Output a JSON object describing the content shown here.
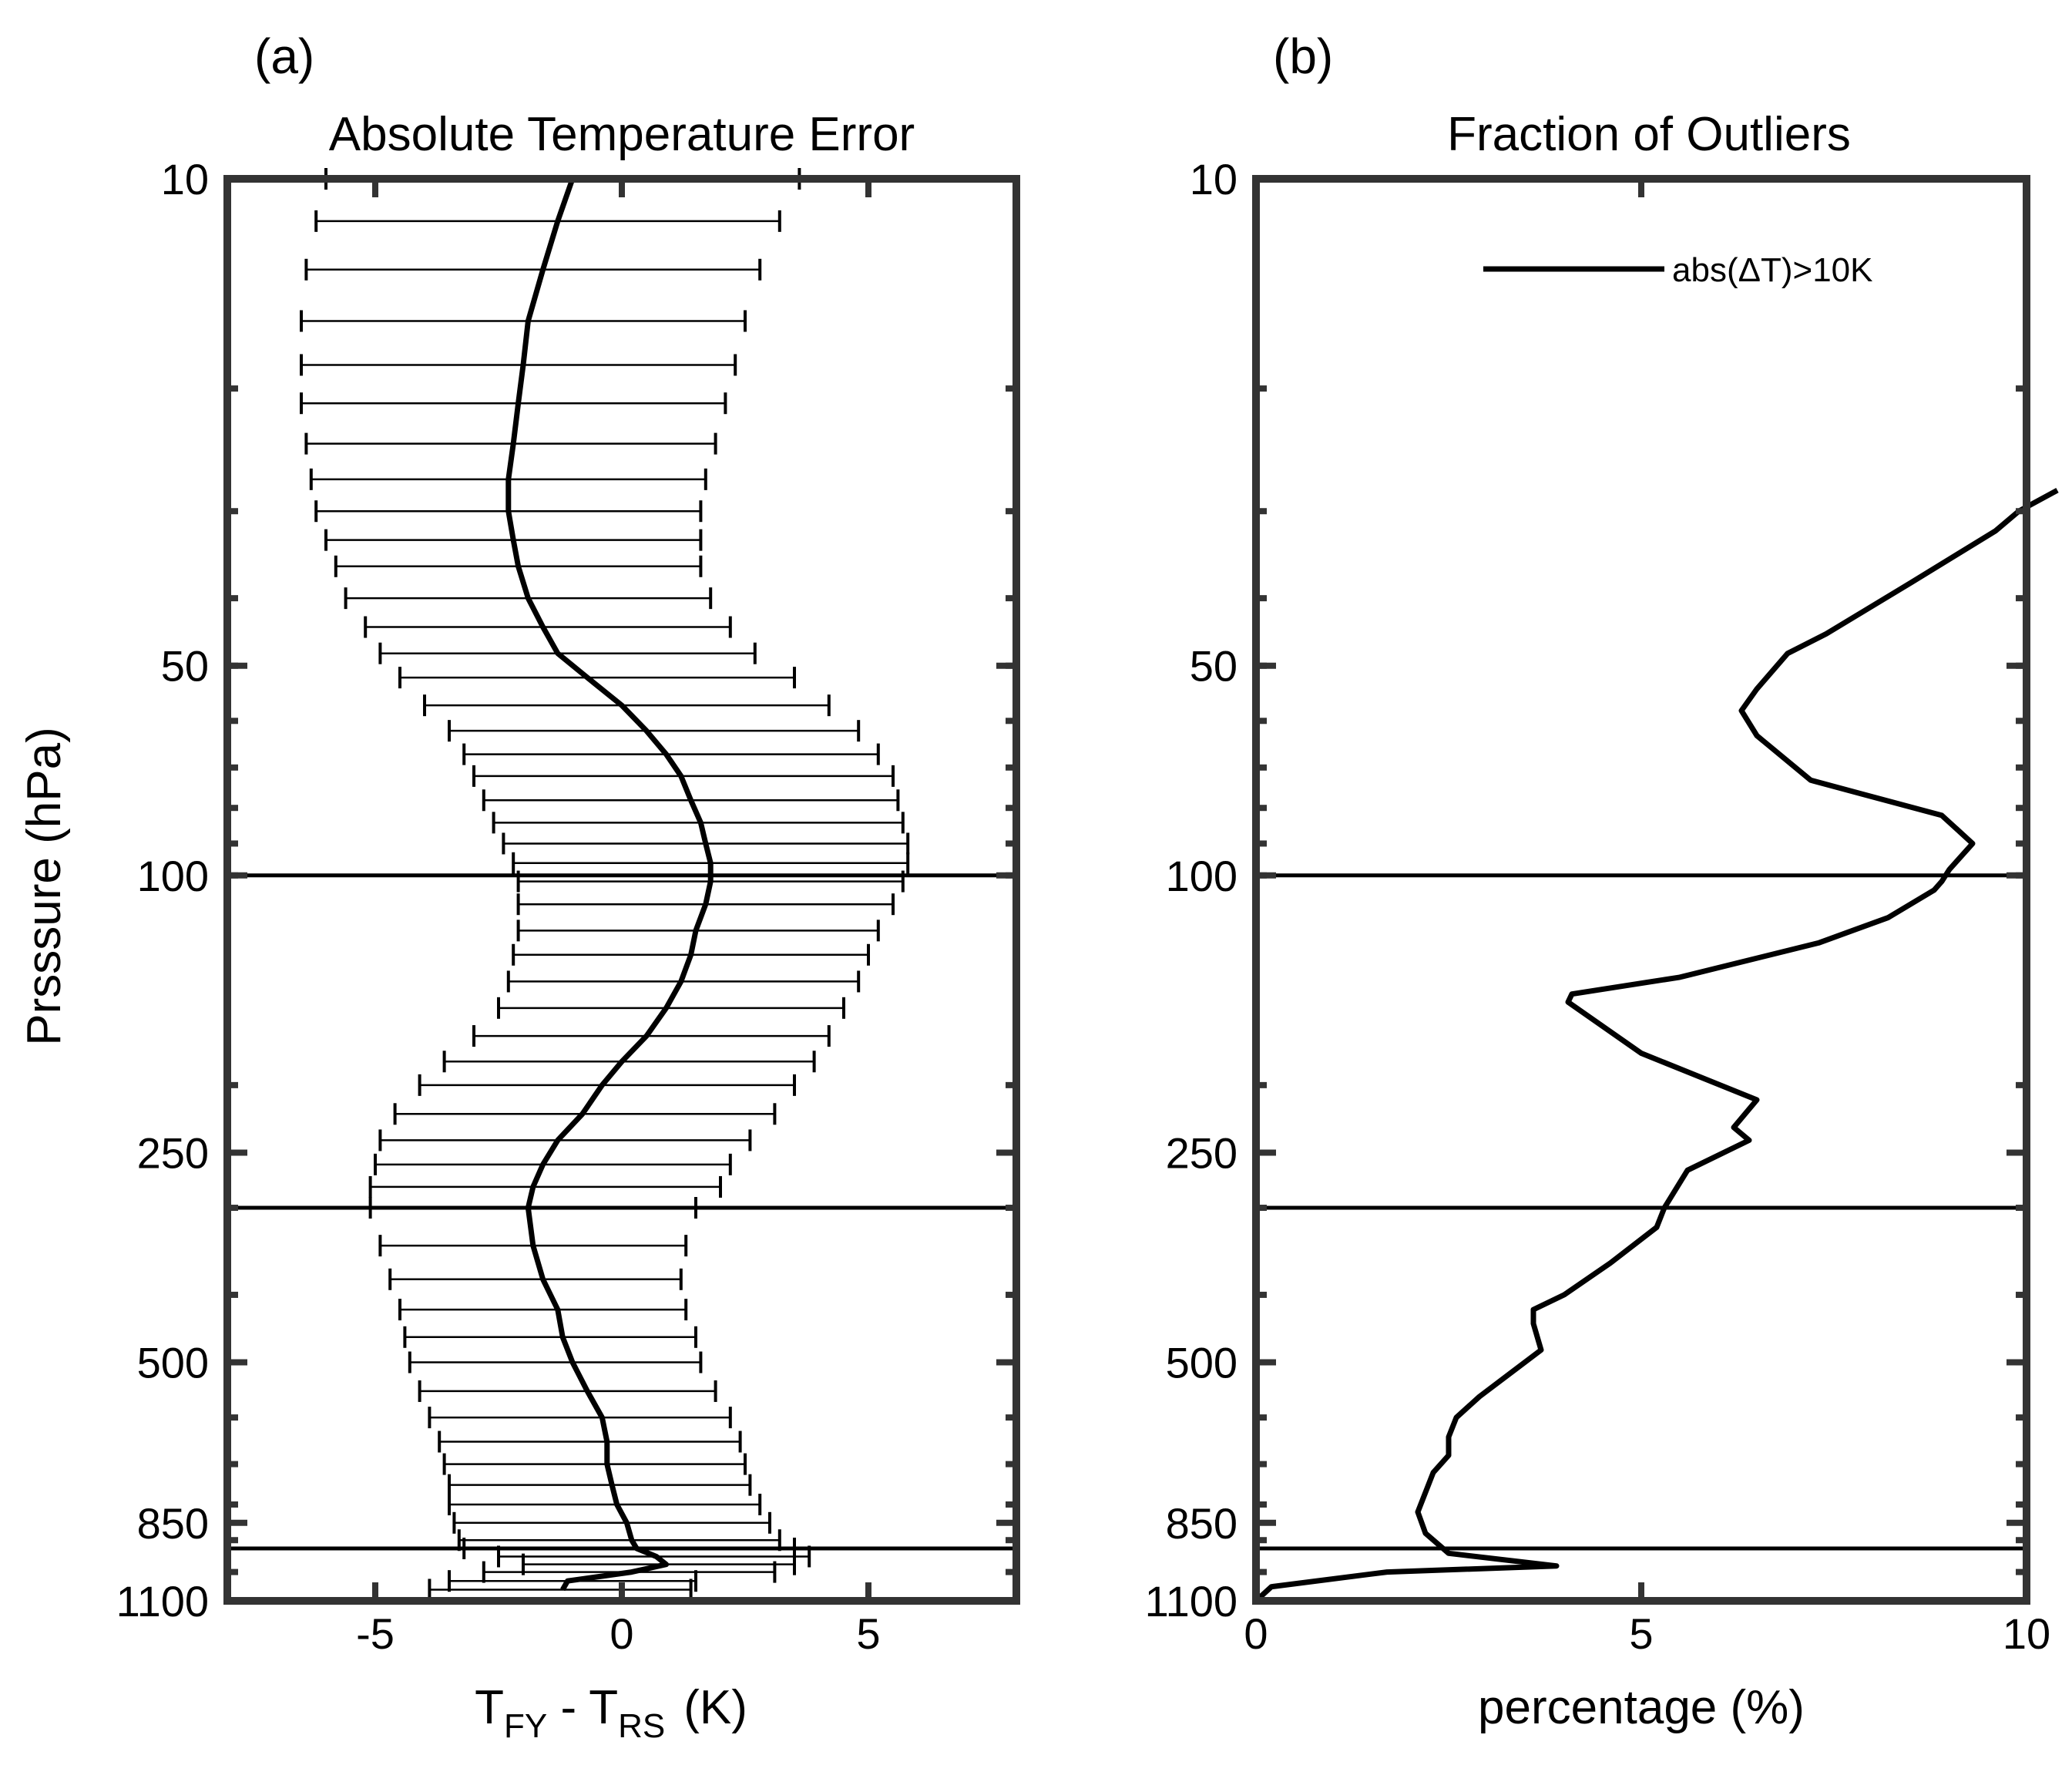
{
  "chart_data": [
    {
      "type": "line",
      "panel_label": "(a)",
      "title": "Absolute Temperature Error",
      "ylabel": "Prsssure (hPa)",
      "xlabel": {
        "T1": "T",
        "sub1": "FY",
        "minus": " - ",
        "T2": "T",
        "sub2": "RS",
        "units": "(K)"
      },
      "xlim": [
        -8,
        8
      ],
      "ylim": [
        10,
        1100
      ],
      "yscale": "log",
      "yreversed": true,
      "xticks": [
        -5,
        0,
        5
      ],
      "xtick_labels": [
        "-5",
        "0",
        "5"
      ],
      "yticks": [
        10,
        50,
        100,
        250,
        500,
        850,
        1100
      ],
      "ytick_labels": [
        "10",
        "50",
        "100",
        "250",
        "500",
        "850",
        "1100"
      ],
      "reference_lines_hPa": [
        100,
        300,
        925
      ],
      "series": [
        {
          "name": "mean",
          "points": [
            {
              "p": 10,
              "mean": -1.0,
              "lo": -6.0,
              "hi": 3.6
            },
            {
              "p": 11.5,
              "mean": -1.3,
              "lo": -6.2,
              "hi": 3.2
            },
            {
              "p": 13.5,
              "mean": -1.6,
              "lo": -6.4,
              "hi": 2.8
            },
            {
              "p": 16,
              "mean": -1.9,
              "lo": -6.5,
              "hi": 2.5
            },
            {
              "p": 18.5,
              "mean": -2.0,
              "lo": -6.5,
              "hi": 2.3
            },
            {
              "p": 21,
              "mean": -2.1,
              "lo": -6.5,
              "hi": 2.1
            },
            {
              "p": 24,
              "mean": -2.2,
              "lo": -6.4,
              "hi": 1.9
            },
            {
              "p": 27,
              "mean": -2.3,
              "lo": -6.3,
              "hi": 1.7
            },
            {
              "p": 30,
              "mean": -2.3,
              "lo": -6.2,
              "hi": 1.6
            },
            {
              "p": 33,
              "mean": -2.2,
              "lo": -6.0,
              "hi": 1.6
            },
            {
              "p": 36,
              "mean": -2.1,
              "lo": -5.8,
              "hi": 1.6
            },
            {
              "p": 40,
              "mean": -1.9,
              "lo": -5.6,
              "hi": 1.8
            },
            {
              "p": 44,
              "mean": -1.6,
              "lo": -5.2,
              "hi": 2.2
            },
            {
              "p": 48,
              "mean": -1.3,
              "lo": -4.9,
              "hi": 2.7
            },
            {
              "p": 52,
              "mean": -0.7,
              "lo": -4.5,
              "hi": 3.5
            },
            {
              "p": 57,
              "mean": 0.0,
              "lo": -4.0,
              "hi": 4.2
            },
            {
              "p": 62,
              "mean": 0.5,
              "lo": -3.5,
              "hi": 4.8
            },
            {
              "p": 67,
              "mean": 0.9,
              "lo": -3.2,
              "hi": 5.2
            },
            {
              "p": 72,
              "mean": 1.2,
              "lo": -3.0,
              "hi": 5.5
            },
            {
              "p": 78,
              "mean": 1.4,
              "lo": -2.8,
              "hi": 5.6
            },
            {
              "p": 84,
              "mean": 1.6,
              "lo": -2.6,
              "hi": 5.7
            },
            {
              "p": 90,
              "mean": 1.7,
              "lo": -2.4,
              "hi": 5.8
            },
            {
              "p": 96,
              "mean": 1.8,
              "lo": -2.2,
              "hi": 5.8
            },
            {
              "p": 102,
              "mean": 1.8,
              "lo": -2.1,
              "hi": 5.7
            },
            {
              "p": 110,
              "mean": 1.7,
              "lo": -2.1,
              "hi": 5.5
            },
            {
              "p": 120,
              "mean": 1.5,
              "lo": -2.1,
              "hi": 5.2
            },
            {
              "p": 130,
              "mean": 1.4,
              "lo": -2.2,
              "hi": 5.0
            },
            {
              "p": 142,
              "mean": 1.2,
              "lo": -2.3,
              "hi": 4.8
            },
            {
              "p": 155,
              "mean": 0.9,
              "lo": -2.5,
              "hi": 4.5
            },
            {
              "p": 170,
              "mean": 0.5,
              "lo": -3.0,
              "hi": 4.2
            },
            {
              "p": 185,
              "mean": 0.0,
              "lo": -3.6,
              "hi": 3.9
            },
            {
              "p": 200,
              "mean": -0.4,
              "lo": -4.1,
              "hi": 3.5
            },
            {
              "p": 220,
              "mean": -0.8,
              "lo": -4.6,
              "hi": 3.1
            },
            {
              "p": 240,
              "mean": -1.3,
              "lo": -4.9,
              "hi": 2.6
            },
            {
              "p": 260,
              "mean": -1.6,
              "lo": -5.0,
              "hi": 2.2
            },
            {
              "p": 280,
              "mean": -1.8,
              "lo": -5.1,
              "hi": 2.0
            },
            {
              "p": 300,
              "mean": -1.9,
              "lo": -5.1,
              "hi": 1.5
            },
            {
              "p": 340,
              "mean": -1.8,
              "lo": -4.9,
              "hi": 1.3
            },
            {
              "p": 380,
              "mean": -1.6,
              "lo": -4.7,
              "hi": 1.2
            },
            {
              "p": 420,
              "mean": -1.3,
              "lo": -4.5,
              "hi": 1.3
            },
            {
              "p": 460,
              "mean": -1.2,
              "lo": -4.4,
              "hi": 1.5
            },
            {
              "p": 500,
              "mean": -1.0,
              "lo": -4.3,
              "hi": 1.6
            },
            {
              "p": 550,
              "mean": -0.7,
              "lo": -4.1,
              "hi": 1.9
            },
            {
              "p": 600,
              "mean": -0.4,
              "lo": -3.9,
              "hi": 2.2
            },
            {
              "p": 650,
              "mean": -0.3,
              "lo": -3.7,
              "hi": 2.4
            },
            {
              "p": 700,
              "mean": -0.3,
              "lo": -3.6,
              "hi": 2.5
            },
            {
              "p": 750,
              "mean": -0.2,
              "lo": -3.5,
              "hi": 2.6
            },
            {
              "p": 800,
              "mean": -0.1,
              "lo": -3.5,
              "hi": 2.8
            },
            {
              "p": 850,
              "mean": 0.1,
              "lo": -3.4,
              "hi": 3.0
            },
            {
              "p": 900,
              "mean": 0.2,
              "lo": -3.3,
              "hi": 3.2
            },
            {
              "p": 925,
              "mean": 0.3,
              "lo": -3.2,
              "hi": 3.5
            },
            {
              "p": 950,
              "mean": 0.7,
              "lo": -2.5,
              "hi": 3.8
            },
            {
              "p": 975,
              "mean": 0.9,
              "lo": -2.0,
              "hi": 3.5
            },
            {
              "p": 1000,
              "mean": 0.2,
              "lo": -2.8,
              "hi": 3.1
            },
            {
              "p": 1030,
              "mean": -1.1,
              "lo": -3.5,
              "hi": 1.5
            },
            {
              "p": 1060,
              "mean": -1.2,
              "lo": -3.9,
              "hi": 1.4
            }
          ]
        }
      ]
    },
    {
      "type": "line",
      "panel_label": "(b)",
      "title": "Fraction of Outliers",
      "xlabel": "percentage (%)",
      "xlim": [
        0,
        10
      ],
      "ylim": [
        10,
        1100
      ],
      "yscale": "log",
      "yreversed": true,
      "xticks": [
        0,
        5,
        10
      ],
      "xtick_labels": [
        "0",
        "5",
        "10"
      ],
      "yticks": [
        10,
        50,
        100,
        250,
        500,
        850,
        1100
      ],
      "ytick_labels": [
        "10",
        "50",
        "100",
        "250",
        "500",
        "850",
        "1100"
      ],
      "reference_lines_hPa": [
        100,
        300,
        925
      ],
      "legend": {
        "label": "abs(ΔT)>10K",
        "placement": "top-right"
      },
      "series": [
        {
          "name": "abs(ΔT)>10K",
          "x": [
            10.4,
            9.9,
            9.6,
            8.5,
            7.4,
            6.9,
            6.5,
            6.3,
            6.5,
            7.2,
            8.9,
            9.3,
            9.0,
            8.9,
            8.8,
            8.2,
            7.3,
            5.5,
            4.1,
            4.05,
            5.0,
            6.5,
            6.2,
            6.4,
            5.6,
            5.3,
            5.2,
            4.6,
            4.0,
            3.6,
            3.6,
            3.7,
            2.9,
            2.6,
            2.5,
            2.5,
            2.3,
            2.1,
            2.2,
            2.5,
            3.9,
            1.7,
            0.2,
            0.0
          ],
          "y": [
            28,
            30,
            32,
            38,
            45,
            48,
            54,
            58,
            63,
            73,
            82,
            90,
            98,
            102,
            105,
            115,
            125,
            140,
            148,
            152,
            180,
            210,
            230,
            240,
            265,
            300,
            320,
            360,
            400,
            420,
            440,
            480,
            560,
            600,
            640,
            680,
            720,
            820,
            880,
            940,
            980,
            1000,
            1050,
            1100
          ]
        }
      ]
    }
  ]
}
